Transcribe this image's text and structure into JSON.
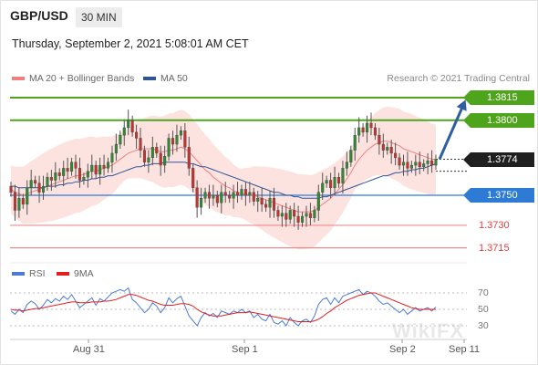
{
  "header": {
    "symbol": "GBP/USD",
    "timeframe": "30 MIN"
  },
  "date_line": "Thursday, September 2, 2021 5:08:01 AM CET",
  "legend": {
    "ma20": {
      "label": "MA 20 + Bollinger Bands",
      "color": "#f08080"
    },
    "ma50": {
      "label": "MA 50",
      "color": "#2f5597"
    }
  },
  "credit": "Research © 2021 Trading Central",
  "rsi_legend": {
    "rsi": {
      "label": "RSI",
      "color": "#4a7bd6"
    },
    "ma9": {
      "label": "9MA",
      "color": "#e02020"
    }
  },
  "rsi_levels": [
    "70",
    "50",
    "30"
  ],
  "x_labels": [
    "Aug 31",
    "Sep 1",
    "Sep 2",
    "Sep 11"
  ],
  "watermark": "WikiFX",
  "chart_data": {
    "type": "candlestick",
    "price_levels": [
      {
        "value": "1.3815",
        "kind": "resistance",
        "color": "#4ea51b"
      },
      {
        "value": "1.3800",
        "kind": "resistance",
        "color": "#4ea51b"
      },
      {
        "value": "1.3774",
        "kind": "last",
        "color": "#1f1f1f"
      },
      {
        "value": "1.3750",
        "kind": "pivot",
        "color": "#2e7bd6"
      },
      {
        "value": "1.3730",
        "kind": "support",
        "color": "#e04040"
      },
      {
        "value": "1.3715",
        "kind": "support",
        "color": "#e04040"
      }
    ],
    "y_range": [
      1.37,
      1.3832
    ],
    "close": [
      1.3752,
      1.374,
      1.3748,
      1.3744,
      1.3755,
      1.376,
      1.3758,
      1.3752,
      1.3756,
      1.3762,
      1.376,
      1.3765,
      1.3763,
      1.3768,
      1.3766,
      1.3772,
      1.3768,
      1.376,
      1.3762,
      1.3766,
      1.377,
      1.3764,
      1.377,
      1.3768,
      1.3772,
      1.3778,
      1.3784,
      1.379,
      1.3795,
      1.38,
      1.3792,
      1.3788,
      1.378,
      1.3772,
      1.3775,
      1.3782,
      1.3778,
      1.377,
      1.3776,
      1.3788,
      1.3784,
      1.379,
      1.3793,
      1.3782,
      1.3768,
      1.3755,
      1.3742,
      1.3748,
      1.3752,
      1.3748,
      1.375,
      1.3745,
      1.3752,
      1.375,
      1.3748,
      1.3752,
      1.375,
      1.3754,
      1.375,
      1.3752,
      1.3746,
      1.3748,
      1.3744,
      1.3742,
      1.3748,
      1.374,
      1.3736,
      1.3738,
      1.3734,
      1.374,
      1.3736,
      1.3732,
      1.3736,
      1.3738,
      1.3735,
      1.374,
      1.3752,
      1.3758,
      1.376,
      1.3755,
      1.3762,
      1.3758,
      1.3768,
      1.3772,
      1.378,
      1.379,
      1.3795,
      1.3792,
      1.3798,
      1.3795,
      1.379,
      1.3784,
      1.378,
      1.3782,
      1.3778,
      1.3775,
      1.377,
      1.3772,
      1.3768,
      1.377,
      1.3772,
      1.3769,
      1.3771,
      1.3773,
      1.377,
      1.3774
    ],
    "ma20": [
      1.3754,
      1.3752,
      1.3751,
      1.375,
      1.3751,
      1.3752,
      1.3753,
      1.3754,
      1.3755,
      1.3756,
      1.3757,
      1.3758,
      1.3759,
      1.376,
      1.3761,
      1.3762,
      1.3763,
      1.3763,
      1.3764,
      1.3765,
      1.3766,
      1.3766,
      1.3767,
      1.3768,
      1.3769,
      1.377,
      1.3772,
      1.3774,
      1.3776,
      1.3778,
      1.3779,
      1.378,
      1.3781,
      1.3781,
      1.3781,
      1.3781,
      1.378,
      1.3779,
      1.3779,
      1.378,
      1.378,
      1.3781,
      1.3782,
      1.3781,
      1.3779,
      1.3776,
      1.3773,
      1.377,
      1.3767,
      1.3765,
      1.3762,
      1.376,
      1.3758,
      1.3756,
      1.3755,
      1.3753,
      1.3752,
      1.3751,
      1.3751,
      1.375,
      1.375,
      1.3749,
      1.3748,
      1.3747,
      1.3746,
      1.3745,
      1.3744,
      1.3743,
      1.3742,
      1.3741,
      1.374,
      1.3739,
      1.3739,
      1.3739,
      1.3739,
      1.374,
      1.3742,
      1.3744,
      1.3746,
      1.3748,
      1.3751,
      1.3754,
      1.3757,
      1.3761,
      1.3765,
      1.377,
      1.3774,
      1.3777,
      1.378,
      1.3782,
      1.3784,
      1.3785,
      1.3786,
      1.3786,
      1.3785,
      1.3784,
      1.3783,
      1.3781,
      1.378,
      1.3779,
      1.3778,
      1.3777,
      1.3776,
      1.3775,
      1.3774,
      1.3774
    ],
    "ma50": [
      1.3756,
      1.3756,
      1.3755,
      1.3755,
      1.3755,
      1.3755,
      1.3755,
      1.3755,
      1.3755,
      1.3756,
      1.3756,
      1.3756,
      1.3757,
      1.3757,
      1.3758,
      1.3758,
      1.3759,
      1.3759,
      1.376,
      1.376,
      1.3761,
      1.3761,
      1.3762,
      1.3762,
      1.3763,
      1.3763,
      1.3764,
      1.3765,
      1.3766,
      1.3767,
      1.3768,
      1.3769,
      1.3769,
      1.377,
      1.377,
      1.3771,
      1.3771,
      1.3771,
      1.3772,
      1.3772,
      1.3772,
      1.3772,
      1.3772,
      1.3772,
      1.3771,
      1.3771,
      1.377,
      1.3769,
      1.3769,
      1.3768,
      1.3767,
      1.3766,
      1.3765,
      1.3764,
      1.3763,
      1.3762,
      1.3761,
      1.376,
      1.3759,
      1.3758,
      1.3757,
      1.3756,
      1.3755,
      1.3754,
      1.3753,
      1.3752,
      1.3752,
      1.3751,
      1.375,
      1.375,
      1.3749,
      1.3749,
      1.3748,
      1.3748,
      1.3748,
      1.3748,
      1.3748,
      1.3749,
      1.3749,
      1.375,
      1.3751,
      1.3752,
      1.3753,
      1.3754,
      1.3755,
      1.3756,
      1.3757,
      1.3758,
      1.3759,
      1.376,
      1.3761,
      1.3762,
      1.3763,
      1.3763,
      1.3764,
      1.3765,
      1.3765,
      1.3766,
      1.3766,
      1.3767,
      1.3767,
      1.3768,
      1.3768,
      1.3769,
      1.377,
      1.3771
    ],
    "rsi": [
      48,
      44,
      50,
      46,
      56,
      60,
      57,
      50,
      55,
      62,
      58,
      63,
      60,
      66,
      62,
      68,
      60,
      52,
      56,
      60,
      64,
      55,
      63,
      60,
      65,
      70,
      72,
      74,
      72,
      76,
      62,
      58,
      52,
      46,
      50,
      58,
      54,
      46,
      52,
      64,
      58,
      63,
      66,
      54,
      42,
      36,
      30,
      40,
      46,
      42,
      45,
      40,
      48,
      46,
      44,
      48,
      46,
      50,
      46,
      48,
      40,
      44,
      38,
      36,
      44,
      34,
      32,
      36,
      30,
      40,
      34,
      30,
      36,
      38,
      34,
      42,
      56,
      62,
      64,
      56,
      64,
      58,
      66,
      68,
      70,
      72,
      74,
      68,
      72,
      70,
      66,
      60,
      56,
      58,
      54,
      50,
      46,
      50,
      44,
      48,
      52,
      48,
      50,
      52,
      48,
      53
    ],
    "rsi_ma": [
      50,
      49,
      49,
      48,
      49,
      50,
      51,
      51,
      52,
      53,
      54,
      55,
      56,
      57,
      58,
      59,
      59,
      58,
      58,
      58,
      59,
      59,
      59,
      60,
      60,
      61,
      62,
      64,
      66,
      68,
      68,
      67,
      65,
      63,
      61,
      60,
      58,
      56,
      55,
      55,
      55,
      56,
      57,
      57,
      56,
      54,
      50,
      47,
      45,
      43,
      42,
      42,
      42,
      43,
      44,
      45,
      46,
      46,
      46,
      47,
      46,
      45,
      44,
      43,
      42,
      41,
      40,
      39,
      38,
      37,
      36,
      35,
      35,
      35,
      35,
      36,
      38,
      41,
      45,
      48,
      52,
      55,
      58,
      61,
      63,
      65,
      67,
      68,
      69,
      70,
      70,
      68,
      66,
      64,
      62,
      60,
      58,
      56,
      54,
      52,
      51,
      50,
      50,
      50,
      50,
      50
    ],
    "rsi_range": [
      20,
      80
    ],
    "projection": {
      "from": "1.3774",
      "to": "1.3815"
    }
  }
}
